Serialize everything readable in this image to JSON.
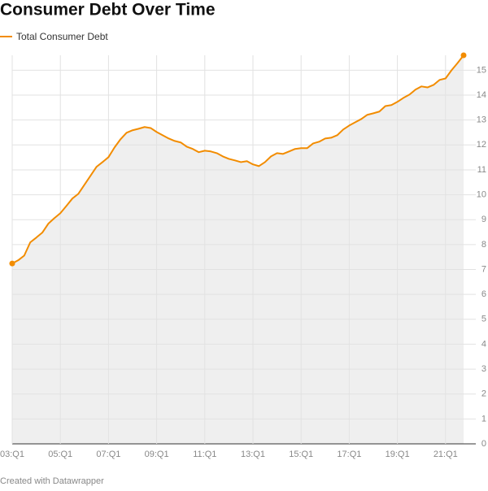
{
  "chart_data": {
    "type": "area",
    "title": "Consumer Debt Over Time",
    "footer": "Created with Datawrapper",
    "categories": [
      "03:Q1",
      null,
      null,
      null,
      null,
      null,
      null,
      null,
      "05:Q1",
      null,
      null,
      null,
      null,
      null,
      null,
      null,
      "07:Q1",
      null,
      null,
      null,
      null,
      null,
      null,
      null,
      "09:Q1",
      null,
      null,
      null,
      null,
      null,
      null,
      null,
      "11:Q1",
      null,
      null,
      null,
      null,
      null,
      null,
      null,
      "13:Q1",
      null,
      null,
      null,
      null,
      null,
      null,
      null,
      "15:Q1",
      null,
      null,
      null,
      null,
      null,
      null,
      null,
      "17:Q1",
      null,
      null,
      null,
      null,
      null,
      null,
      null,
      "19:Q1",
      null,
      null,
      null,
      null,
      null,
      null,
      null,
      "21:Q1",
      null,
      null,
      null
    ],
    "series": [
      {
        "name": "Total Consumer Debt",
        "color": "#f28c00",
        "fill": "#efefef",
        "values": [
          7.24,
          7.37,
          7.56,
          8.09,
          8.28,
          8.48,
          8.84,
          9.06,
          9.26,
          9.55,
          9.85,
          10.04,
          10.4,
          10.76,
          11.12,
          11.31,
          11.51,
          11.9,
          12.23,
          12.49,
          12.59,
          12.65,
          12.72,
          12.68,
          12.52,
          12.39,
          12.26,
          12.16,
          12.1,
          11.93,
          11.84,
          11.71,
          11.77,
          11.74,
          11.67,
          11.54,
          11.44,
          11.38,
          11.31,
          11.35,
          11.22,
          11.15,
          11.31,
          11.54,
          11.67,
          11.64,
          11.74,
          11.84,
          11.87,
          11.87,
          12.06,
          12.13,
          12.26,
          12.29,
          12.39,
          12.62,
          12.78,
          12.91,
          13.04,
          13.21,
          13.27,
          13.34,
          13.56,
          13.6,
          13.73,
          13.89,
          14.02,
          14.22,
          14.35,
          14.31,
          14.41,
          14.61,
          14.67,
          15.0,
          15.29,
          15.6
        ]
      }
    ],
    "ylim": [
      0,
      15.6
    ],
    "yticks": [
      0,
      1,
      2,
      3,
      4,
      5,
      6,
      7,
      8,
      9,
      10,
      11,
      12,
      13,
      14,
      15
    ],
    "grid": true
  }
}
